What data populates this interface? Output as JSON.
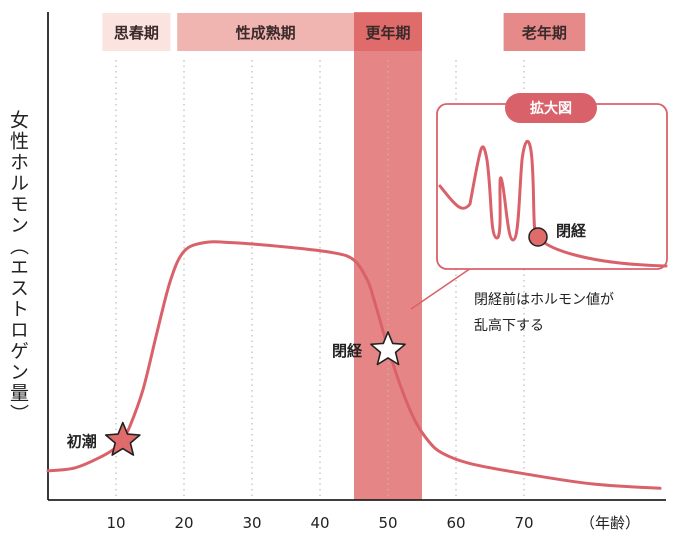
{
  "chart_data": {
    "type": "line",
    "ylabel": "女性ホルモン（エストロゲン量）",
    "xunit": "（年齢）",
    "xlim": [
      0,
      90
    ],
    "ylim": [
      0,
      100
    ],
    "x_ticks": [
      10,
      20,
      30,
      40,
      50,
      60,
      70
    ],
    "grid": "vertical-dotted",
    "series": [
      {
        "x": [
          0,
          4,
          8,
          10,
          11,
          12,
          14,
          16,
          18,
          20,
          23,
          27,
          35,
          42,
          45,
          47,
          48,
          50,
          52,
          54,
          56,
          58,
          62,
          70,
          80,
          90
        ],
        "values": [
          10,
          11,
          15,
          18,
          21,
          25,
          38,
          57,
          75,
          85,
          88,
          88,
          86.5,
          84.5,
          82,
          75,
          68,
          52,
          38,
          27,
          20,
          16,
          12.5,
          9,
          5.5,
          4
        ]
      }
    ],
    "phases": [
      {
        "label": "思春期",
        "from": 8,
        "to": 18,
        "color": "#fbe3df"
      },
      {
        "label": "性成熟期",
        "from": 19,
        "to": 45,
        "color": "#f1b5b1"
      },
      {
        "label": "更年期",
        "from": 45,
        "to": 55,
        "color": "#df6b6b"
      },
      {
        "label": "老年期",
        "from": 67,
        "to": 79,
        "color": "#e58a88"
      }
    ],
    "menopause_band": {
      "from": 45,
      "to": 55,
      "color": "#e58585"
    },
    "annotations": [
      {
        "label": "初潮",
        "x": 11,
        "y": 21,
        "marker": "star-filled"
      },
      {
        "label": "閉経",
        "x": 50,
        "y": 52,
        "marker": "star-outline"
      }
    ],
    "inset": {
      "title": "拡大図",
      "point_label": "閉経",
      "note_lines": [
        "閉経前はホルモン値が",
        "乱高下する"
      ]
    }
  },
  "colors": {
    "line": "#d9626a",
    "axis": "#222222",
    "grid": "#bbbbbb",
    "inset_border": "#d9626a"
  }
}
